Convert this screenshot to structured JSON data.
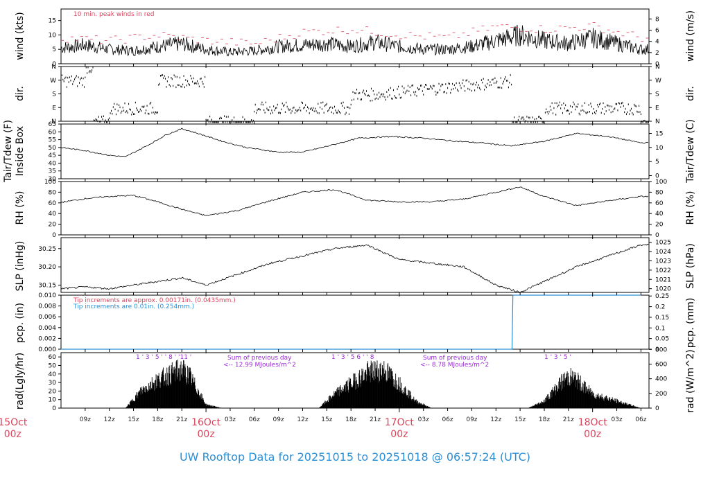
{
  "footer": {
    "title": "UW Rooftop Data for 20251015  to  20251018 @ 06:57:24  (UTC)"
  },
  "x_axis": {
    "ticks": [
      "09z",
      "12z",
      "15z",
      "18z",
      "21z",
      "03z",
      "06z",
      "09z",
      "12z",
      "15z",
      "18z",
      "21z",
      "03z",
      "06z",
      "09z",
      "12z",
      "15z",
      "18z",
      "21z",
      "03z",
      "06z"
    ],
    "day_labels": [
      {
        "top": "15Oct",
        "bottom": "00z"
      },
      {
        "top": "16Oct",
        "bottom": "00z"
      },
      {
        "top": "17Oct",
        "bottom": "00z"
      },
      {
        "top": "18Oct",
        "bottom": "00z"
      }
    ]
  },
  "panels": {
    "wind": {
      "left_label": "wind (kts)",
      "right_label": "wind (m/s)",
      "left_ticks": [
        "0",
        "5",
        "10",
        "15"
      ],
      "right_ticks": [
        "0",
        "2",
        "4",
        "6",
        "8"
      ],
      "note": "10 min. peak winds in red",
      "note_color": "#d9435b"
    },
    "dir": {
      "left_label": "dir.",
      "right_label": "dir.",
      "left_ticks": [
        "N",
        "E",
        "S",
        "W",
        "N"
      ],
      "right_ticks": [
        "N",
        "E",
        "S",
        "W",
        "N"
      ]
    },
    "temp": {
      "left_label_1": "Tair/Tdew (F)",
      "left_label_2": "Inside Box",
      "right_label": "Tair/Tdew (C)",
      "left_ticks": [
        "30",
        "35",
        "40",
        "45",
        "50",
        "55",
        "60",
        "65"
      ],
      "right_ticks": [
        "0",
        "5",
        "10",
        "15"
      ]
    },
    "rh": {
      "left_label": "RH (%)",
      "right_label": "RH (%)",
      "left_ticks": [
        "0",
        "20",
        "40",
        "60",
        "80",
        "100"
      ],
      "right_ticks": [
        "0",
        "20",
        "40",
        "60",
        "80",
        "100"
      ]
    },
    "slp": {
      "left_label": "SLP (inHg)",
      "right_label": "SLP (hPa)",
      "left_ticks": [
        "30.15",
        "30.20",
        "30.25"
      ],
      "right_ticks": [
        "1020",
        "1021",
        "1022",
        "1023",
        "1024",
        "1025"
      ]
    },
    "pcp": {
      "left_label": "pcp. (in)",
      "right_label": "pcp. (mm)",
      "left_ticks": [
        "0.000",
        "0.002",
        "0.004",
        "0.006",
        "0.008",
        "0.010"
      ],
      "right_ticks": [
        "0",
        "0.05",
        "0.1",
        "0.15",
        "0.2",
        "0.25"
      ],
      "note_1": "Tip increments are approx. 0.00171in. (0.0435mm.)",
      "note_1_color": "#d9435b",
      "note_2": "Tip increments are 0.01in. (0.254mm.)",
      "note_2_color": "#2a8fd6"
    },
    "rad": {
      "left_label": "rad(Lgly/hr)",
      "right_label": "rad (W/m^2)",
      "left_ticks": [
        "0",
        "10",
        "20",
        "30",
        "40",
        "50",
        "60"
      ],
      "right_ticks": [
        "0",
        "200",
        "400",
        "600",
        "800"
      ],
      "hour_marks_1": "1 ' 3 ' 5 ' ' 8 ' '11 '",
      "hour_marks_2": "1 ' 3 ' 5  6 ' ' 8",
      "hour_marks_3": "1 ' 3 ' 5 '",
      "sum_1_line1": "Sum of previous day",
      "sum_1_line2": "<-- 12.99 MJoules/m^2",
      "sum_2_line1": "Sum of previous day",
      "sum_2_line2": "<-- 8.78 MJoules/m^2",
      "sum_color": "#9a2bd6"
    }
  },
  "chart_data": [
    {
      "type": "line",
      "title": "wind (kts)",
      "x_unit": "hours since 15Oct 00z",
      "ylim": [
        0,
        19
      ],
      "series": [
        {
          "name": "",
          "x": [
            6,
            9,
            12,
            15,
            18,
            21,
            24,
            27,
            30,
            33,
            36,
            39,
            42,
            45,
            48,
            51,
            54,
            57,
            60,
            63,
            66,
            69,
            72,
            75,
            78
          ],
          "values": [
            5.5,
            6.5,
            5,
            4.5,
            6,
            7,
            5,
            4,
            4.5,
            6,
            6.5,
            7,
            6,
            7.5,
            6,
            5,
            5,
            6,
            8,
            10,
            8,
            7,
            9,
            7,
            5
          ]
        },
        {
          "name": "10 min. peak winds in red",
          "x": [
            6,
            12,
            18,
            24,
            30,
            36,
            42,
            48,
            54,
            60,
            66,
            72,
            78
          ],
          "values": [
            9,
            8,
            10,
            8,
            7,
            11,
            12,
            10,
            9,
            13,
            12,
            13,
            9
          ]
        }
      ]
    },
    {
      "type": "scatter",
      "title": "dir.",
      "categories": [
        "N",
        "E",
        "S",
        "W",
        "N"
      ],
      "x": [
        6,
        9,
        12,
        15,
        18,
        21,
        24,
        30,
        36,
        42,
        48,
        54,
        60,
        62,
        66,
        72,
        78
      ],
      "values": [
        "W",
        "N",
        "E",
        "E",
        "W",
        "W",
        "N",
        "E",
        "E",
        "S",
        "S",
        "S",
        "S",
        "N",
        "E",
        "E",
        "N"
      ]
    },
    {
      "type": "line",
      "title": "Tair/Tdew (F)",
      "ylim": [
        30,
        65
      ],
      "x": [
        6,
        9,
        12,
        14,
        17,
        19,
        21,
        23,
        26,
        29,
        33,
        36,
        40,
        43,
        47,
        51,
        55,
        58,
        62,
        66,
        70,
        74,
        78
      ],
      "values": [
        50,
        48,
        45,
        44,
        52,
        58,
        62,
        59,
        54,
        50,
        47,
        47,
        52,
        56,
        57,
        56,
        54,
        53,
        51,
        54,
        59,
        57,
        53
      ]
    },
    {
      "type": "line",
      "title": "RH (%)",
      "ylim": [
        0,
        100
      ],
      "x": [
        6,
        9,
        12,
        15,
        18,
        21,
        24,
        28,
        32,
        36,
        40,
        44,
        48,
        52,
        56,
        60,
        63,
        66,
        70,
        74,
        78
      ],
      "values": [
        61,
        68,
        72,
        74,
        62,
        48,
        36,
        46,
        64,
        80,
        85,
        65,
        62,
        62,
        67,
        80,
        90,
        72,
        55,
        64,
        72
      ]
    },
    {
      "type": "line",
      "title": "SLP (inHg)",
      "ylim": [
        30.13,
        30.28
      ],
      "x": [
        6,
        9,
        12,
        15,
        18,
        21,
        24,
        28,
        32,
        36,
        40,
        44,
        48,
        52,
        56,
        60,
        63,
        66,
        70,
        74,
        78
      ],
      "values": [
        30.14,
        30.145,
        30.14,
        30.15,
        30.16,
        30.17,
        30.15,
        30.18,
        30.21,
        30.23,
        30.25,
        30.26,
        30.22,
        30.21,
        30.2,
        30.15,
        30.13,
        30.16,
        30.2,
        30.23,
        30.26
      ]
    },
    {
      "type": "line",
      "title": "pcp. (in)",
      "ylim": [
        0,
        0.01
      ],
      "x": [
        6,
        62,
        62.1,
        78
      ],
      "values": [
        0,
        0,
        0.01,
        0.01
      ]
    },
    {
      "type": "area",
      "title": "rad(Lgly/hr)",
      "ylim": [
        0,
        65
      ],
      "x": [
        6,
        12,
        14,
        16,
        18,
        20,
        21,
        22,
        24,
        26,
        36,
        38,
        40,
        42,
        44,
        46,
        47,
        48,
        50,
        52,
        60,
        62,
        64,
        66,
        68,
        69,
        70,
        72,
        78
      ],
      "values": [
        0,
        0,
        0,
        25,
        40,
        50,
        55,
        45,
        5,
        0,
        0,
        0,
        20,
        35,
        50,
        55,
        45,
        35,
        10,
        0,
        0,
        0,
        0,
        10,
        35,
        45,
        40,
        20,
        0
      ]
    }
  ]
}
